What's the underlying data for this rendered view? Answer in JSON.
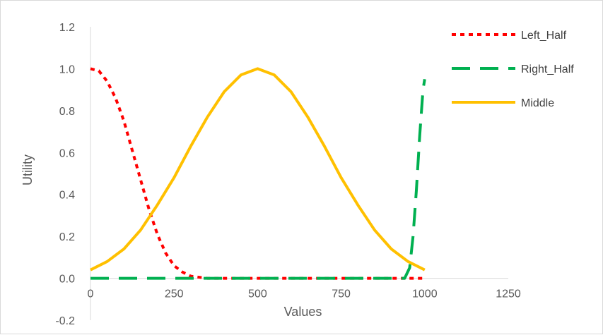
{
  "chart_data": {
    "type": "line",
    "title": "",
    "xlabel": "Values",
    "ylabel": "Utility",
    "xlim": [
      0,
      1250
    ],
    "ylim": [
      -0.2,
      1.2
    ],
    "x_ticks": [
      0,
      250,
      500,
      750,
      1000,
      1250
    ],
    "x_tick_labels": [
      "0",
      "250",
      "500",
      "750",
      "1000",
      "1250"
    ],
    "y_ticks": [
      -0.2,
      0.0,
      0.2,
      0.4,
      0.6,
      0.8,
      1.0,
      1.2
    ],
    "y_tick_labels": [
      "-0.2",
      "0.0",
      "0.2",
      "0.4",
      "0.6",
      "0.8",
      "1.0",
      "1.2"
    ],
    "grid": false,
    "legend_position": "right",
    "series": [
      {
        "name": "Left_Half",
        "color": "#ff0000",
        "line_style": "dotted",
        "x": [
          0,
          25,
          50,
          75,
          100,
          125,
          150,
          175,
          200,
          225,
          250,
          275,
          300,
          350,
          400,
          500,
          600,
          700,
          800,
          900,
          1000
        ],
        "y": [
          1.0,
          0.99,
          0.94,
          0.86,
          0.75,
          0.61,
          0.47,
          0.33,
          0.21,
          0.12,
          0.06,
          0.03,
          0.01,
          0.0,
          0.0,
          0.0,
          0.0,
          0.0,
          0.0,
          0.0,
          0.0
        ]
      },
      {
        "name": "Right_Half",
        "color": "#00b050",
        "line_style": "dashed",
        "x": [
          0,
          100,
          200,
          300,
          400,
          500,
          600,
          700,
          800,
          900,
          940,
          955,
          965,
          975,
          985,
          995,
          1000
        ],
        "y": [
          0.0,
          0.0,
          0.0,
          0.0,
          0.0,
          0.0,
          0.0,
          0.0,
          0.0,
          0.0,
          0.0,
          0.05,
          0.2,
          0.42,
          0.68,
          0.9,
          0.95
        ]
      },
      {
        "name": "Middle",
        "color": "#ffc000",
        "line_style": "solid",
        "x": [
          0,
          50,
          100,
          150,
          200,
          250,
          300,
          350,
          400,
          450,
          500,
          550,
          600,
          650,
          700,
          750,
          800,
          850,
          900,
          950,
          1000
        ],
        "y": [
          0.04,
          0.08,
          0.14,
          0.23,
          0.35,
          0.48,
          0.63,
          0.77,
          0.89,
          0.97,
          1.0,
          0.97,
          0.89,
          0.77,
          0.63,
          0.48,
          0.35,
          0.23,
          0.14,
          0.08,
          0.04
        ]
      }
    ]
  }
}
